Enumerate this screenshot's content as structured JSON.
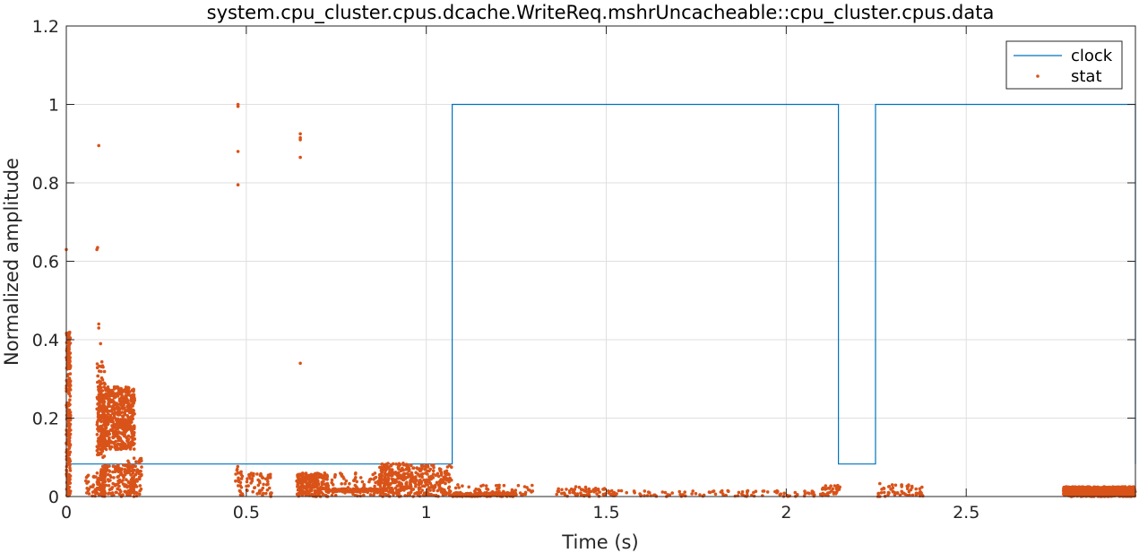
{
  "chart_data": {
    "type": "line",
    "title": "system.cpu_cluster.cpus.dcache.WriteReq.mshrUncacheable::cpu_cluster.cpus.data",
    "xlabel": "Time (s)",
    "ylabel": "Normalized amplitude",
    "xlim": [
      0,
      2.97
    ],
    "ylim": [
      0,
      1.2
    ],
    "xticks": [
      0,
      0.5,
      1,
      1.5,
      2,
      2.5
    ],
    "xtick_labels": [
      "0",
      "0.5",
      "1",
      "1.5",
      "2",
      "2.5"
    ],
    "yticks": [
      0,
      0.2,
      0.4,
      0.6,
      0.8,
      1,
      1.2
    ],
    "ytick_labels": [
      "0",
      "0.2",
      "0.4",
      "0.6",
      "0.8",
      "1",
      "1.2"
    ],
    "grid": true,
    "legend_position": "top-right",
    "colors": {
      "clock": "#0072BD",
      "stat": "#D95319"
    },
    "series": [
      {
        "name": "clock",
        "style": "step-line",
        "x": [
          0,
          1.072,
          1.072,
          2.145,
          2.145,
          2.248,
          2.248,
          2.97,
          2.97
        ],
        "y": [
          0.083,
          0.083,
          1,
          1,
          0.083,
          0.083,
          1,
          1,
          0.083
        ]
      },
      {
        "name": "stat",
        "style": "markers",
        "clusters": [
          {
            "x": [
              0.0,
              0.012
            ],
            "y": [
              0.0,
              0.42
            ],
            "n": 260
          },
          {
            "x": [
              0.05,
              0.09
            ],
            "y": [
              0.0,
              0.06
            ],
            "n": 30
          },
          {
            "x": [
              0.085,
              0.108
            ],
            "y": [
              0.0,
              0.06
            ],
            "n": 50
          },
          {
            "x": [
              0.085,
              0.108
            ],
            "y": [
              0.1,
              0.36
            ],
            "n": 80
          },
          {
            "x": [
              0.088,
              0.19
            ],
            "y": [
              0.12,
              0.28
            ],
            "n": 650
          },
          {
            "x": [
              0.095,
              0.19
            ],
            "y": [
              0.0,
              0.08
            ],
            "n": 170
          },
          {
            "x": [
              0.17,
              0.21
            ],
            "y": [
              0.0,
              0.1
            ],
            "n": 70
          },
          {
            "x": [
              0.47,
              0.49
            ],
            "y": [
              0.0,
              0.08
            ],
            "n": 25
          },
          {
            "x": [
              0.5,
              0.57
            ],
            "y": [
              0.0,
              0.06
            ],
            "n": 60
          },
          {
            "x": [
              0.64,
              0.73
            ],
            "y": [
              0.0,
              0.06
            ],
            "n": 230
          },
          {
            "x": [
              0.73,
              0.87
            ],
            "y": [
              0.012,
              0.02
            ],
            "n": 110
          },
          {
            "x": [
              0.73,
              0.87
            ],
            "y": [
              0.0,
              0.06
            ],
            "n": 70
          },
          {
            "x": [
              0.87,
              0.96
            ],
            "y": [
              0.0,
              0.085
            ],
            "n": 260
          },
          {
            "x": [
              0.96,
              1.07
            ],
            "y": [
              0.0,
              0.08
            ],
            "n": 180
          },
          {
            "x": [
              1.07,
              1.25
            ],
            "y": [
              0.0,
              0.01
            ],
            "n": 150
          },
          {
            "x": [
              1.08,
              1.3
            ],
            "y": [
              0.0,
              0.03
            ],
            "n": 55
          },
          {
            "x": [
              1.36,
              1.5
            ],
            "y": [
              0.0,
              0.025
            ],
            "n": 60
          },
          {
            "x": [
              1.5,
              2.14
            ],
            "y": [
              0.0,
              0.015
            ],
            "n": 110
          },
          {
            "x": [
              2.1,
              2.15
            ],
            "y": [
              0.0,
              0.03
            ],
            "n": 30
          },
          {
            "x": [
              2.25,
              2.38
            ],
            "y": [
              0.0,
              0.03
            ],
            "n": 60
          },
          {
            "x": [
              2.77,
              2.97
            ],
            "y": [
              0.0,
              0.025
            ],
            "n": 800
          }
        ],
        "points": [
          [
            0.0,
            0.63
          ],
          [
            0.085,
            0.63
          ],
          [
            0.087,
            0.635
          ],
          [
            0.09,
            0.895
          ],
          [
            0.09,
            0.44
          ],
          [
            0.09,
            0.43
          ],
          [
            0.095,
            0.39
          ],
          [
            0.477,
            1.0
          ],
          [
            0.477,
            0.995
          ],
          [
            0.477,
            0.88
          ],
          [
            0.477,
            0.795
          ],
          [
            0.65,
            0.925
          ],
          [
            0.65,
            0.915
          ],
          [
            0.65,
            0.91
          ],
          [
            0.65,
            0.865
          ],
          [
            0.65,
            0.34
          ],
          [
            0.99,
            0.077
          ],
          [
            1.0,
            0.08
          ],
          [
            1.02,
            0.08
          ],
          [
            2.26,
            0.033
          ]
        ]
      }
    ]
  }
}
